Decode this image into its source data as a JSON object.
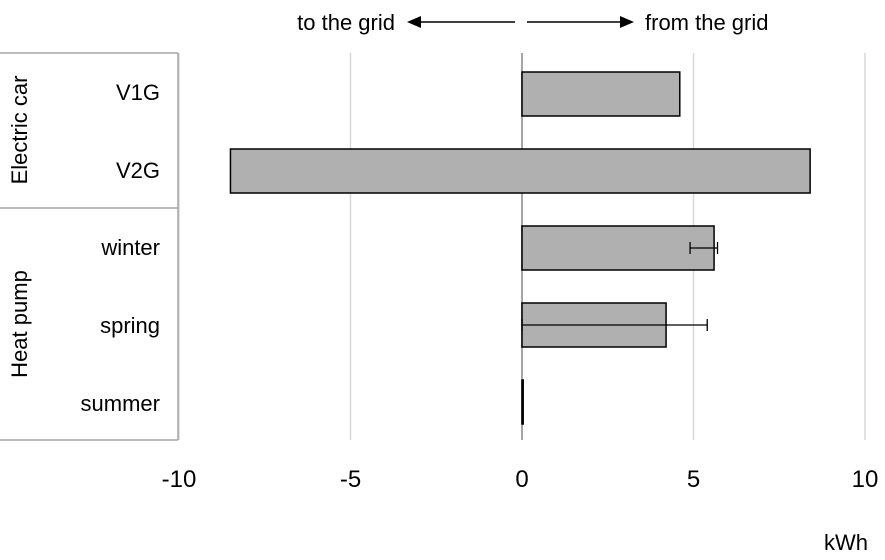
{
  "chart_data": {
    "type": "bar",
    "orientation": "horizontal",
    "categories": [
      "V1G",
      "V2G",
      "winter",
      "spring",
      "summer"
    ],
    "groups": [
      {
        "label": "Electric car",
        "categories": [
          "V1G",
          "V2G"
        ]
      },
      {
        "label": "Heat pump",
        "categories": [
          "winter",
          "spring",
          "summer"
        ]
      }
    ],
    "series": [
      {
        "bars": [
          {
            "category": "V1G",
            "from": 0,
            "to": 4.6
          },
          {
            "category": "V2G",
            "from": -8.5,
            "to": 8.4
          },
          {
            "category": "winter",
            "from": 0,
            "to": 5.6,
            "error": [
              4.9,
              5.7
            ]
          },
          {
            "category": "spring",
            "from": 0,
            "to": 4.2,
            "error": [
              0,
              5.4
            ]
          },
          {
            "category": "summer",
            "from": 0,
            "to": 0.0
          }
        ]
      }
    ],
    "xlim": [
      -10,
      10
    ],
    "xticks": [
      -10,
      -5,
      0,
      5,
      10
    ],
    "xlabel": "kWh",
    "direction_labels": {
      "left": "to the grid",
      "right": "from the grid"
    },
    "grid": "vertical",
    "colors": {
      "bar_fill": "#b0b0b0",
      "bar_stroke": "#000000",
      "grid": "#d9d9d9",
      "zero_line": "#a6a6a6",
      "axis": "#a6a6a6"
    }
  }
}
